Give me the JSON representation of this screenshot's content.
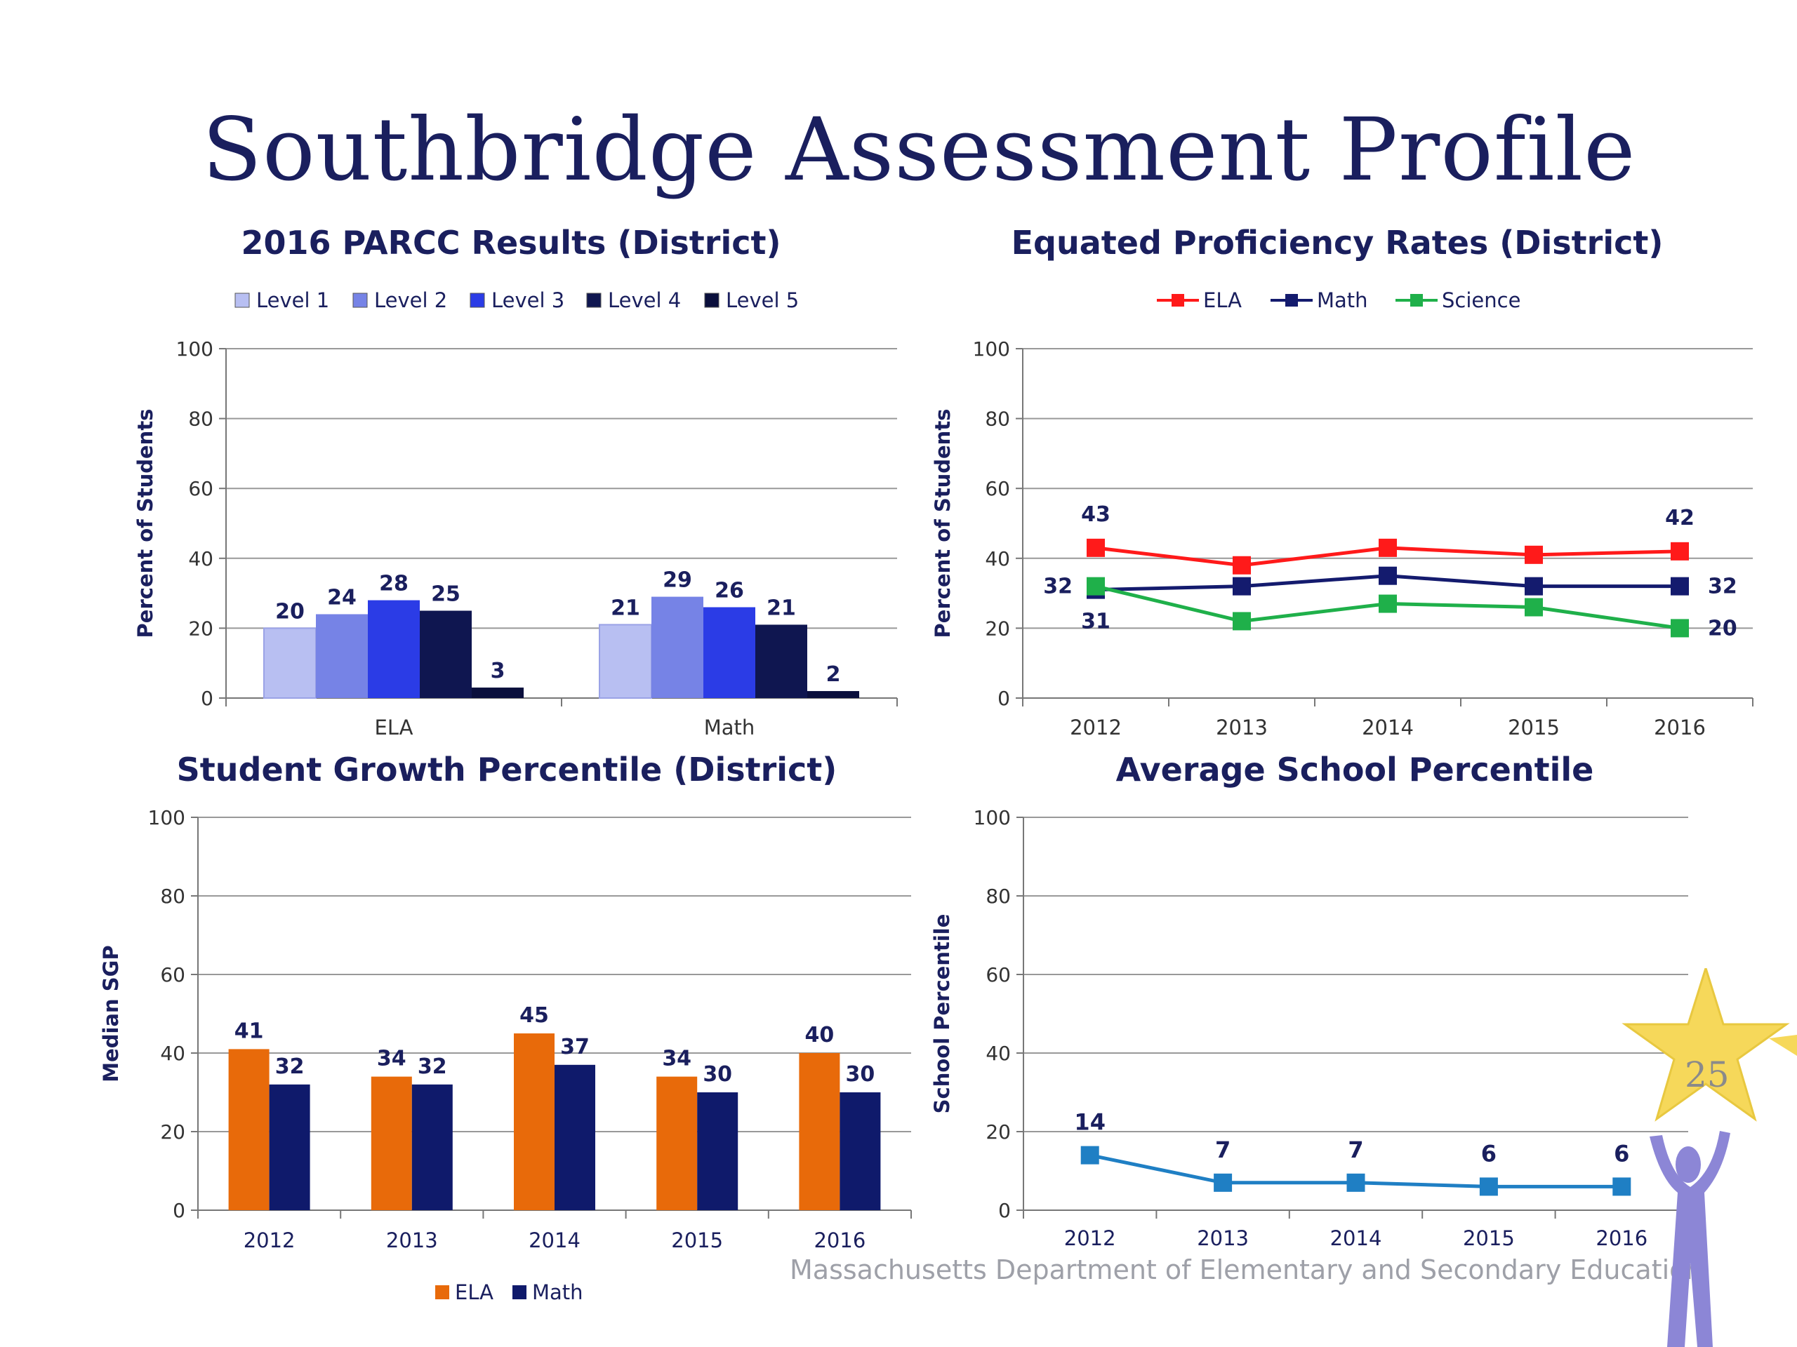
{
  "slide": {
    "title": "Southbridge Assessment Profile",
    "footer": "Massachusetts Department of Elementary and Secondary Education",
    "page_number": "25"
  },
  "colors": {
    "title": "#1a1f5e",
    "level1": "#b8bff2",
    "level2": "#7683e6",
    "level3": "#2b3ce6",
    "level4": "#0f1650",
    "level5": "#0a0f3c",
    "ela_line": "#ff1a1a",
    "math_line": "#141b6e",
    "science_line": "#1fb04a",
    "ela_bar": "#e86a0a",
    "math_bar": "#0f1a6b",
    "asp_line": "#1f7fc4",
    "star": "#f6d85a",
    "mascot": "#8c86d6"
  },
  "chart_data": [
    {
      "type": "bar",
      "title": "2016 PARCC Results (District)",
      "ylabel": "Percent of Students",
      "xlabel": "",
      "ylim": [
        0,
        100
      ],
      "yticks": [
        0,
        20,
        40,
        60,
        80,
        100
      ],
      "categories": [
        "ELA",
        "Math"
      ],
      "legend_position": "top",
      "series": [
        {
          "name": "Level 1",
          "values": [
            20,
            21
          ]
        },
        {
          "name": "Level 2",
          "values": [
            24,
            29
          ]
        },
        {
          "name": "Level 3",
          "values": [
            28,
            26
          ]
        },
        {
          "name": "Level 4",
          "values": [
            25,
            21
          ]
        },
        {
          "name": "Level 5",
          "values": [
            3,
            2
          ]
        }
      ],
      "grid": true
    },
    {
      "type": "line",
      "title": "Equated Proficiency Rates (District)",
      "ylabel": "Percent of Students",
      "xlabel": "",
      "ylim": [
        0,
        100
      ],
      "yticks": [
        0,
        20,
        40,
        60,
        80,
        100
      ],
      "x": [
        "2012",
        "2013",
        "2014",
        "2015",
        "2016"
      ],
      "legend_position": "top",
      "series": [
        {
          "name": "ELA",
          "values": [
            43,
            38,
            43,
            41,
            42
          ],
          "labels": [
            "43",
            "",
            "",
            "",
            "42"
          ]
        },
        {
          "name": "Math",
          "values": [
            31,
            32,
            35,
            32,
            32
          ],
          "labels": [
            "31",
            "",
            "",
            "",
            "32"
          ]
        },
        {
          "name": "Science",
          "values": [
            32,
            22,
            27,
            26,
            20
          ],
          "labels": [
            "32",
            "",
            "",
            "",
            "20"
          ]
        }
      ],
      "grid": true
    },
    {
      "type": "bar",
      "title": "Student Growth Percentile (District)",
      "ylabel": "Median SGP",
      "xlabel": "",
      "ylim": [
        0,
        100
      ],
      "yticks": [
        0,
        20,
        40,
        60,
        80,
        100
      ],
      "categories": [
        "2012",
        "2013",
        "2014",
        "2015",
        "2016"
      ],
      "legend_position": "bottom",
      "series": [
        {
          "name": "ELA",
          "values": [
            41,
            34,
            45,
            34,
            40
          ]
        },
        {
          "name": "Math",
          "values": [
            32,
            32,
            37,
            30,
            30
          ]
        }
      ],
      "grid": true
    },
    {
      "type": "line",
      "title": "Average School Percentile",
      "ylabel": "School Percentile",
      "xlabel": "",
      "ylim": [
        0,
        100
      ],
      "yticks": [
        0,
        20,
        40,
        60,
        80,
        100
      ],
      "x": [
        "2012",
        "2013",
        "2014",
        "2015",
        "2016"
      ],
      "series": [
        {
          "values": [
            14,
            7,
            7,
            6,
            6
          ]
        }
      ],
      "grid": true
    }
  ]
}
